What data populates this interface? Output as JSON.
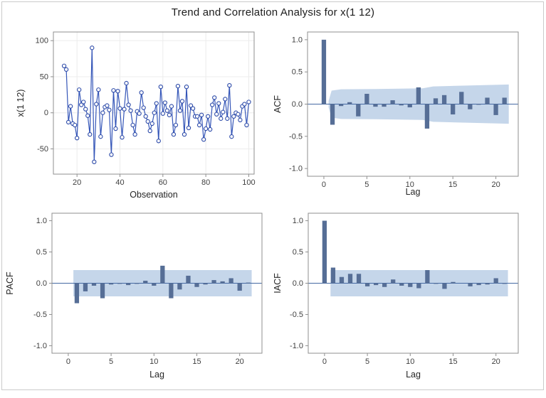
{
  "title": "Trend and Correlation Analysis for x(1 12)",
  "colors": {
    "accent_line": "#3556b8",
    "marker_edge": "#2b49a8",
    "marker_fill": "#ffffff",
    "bar": "#566e96",
    "band": "#c5d6ea",
    "zero_line": "#4569a3",
    "frame": "#8f8f8f",
    "grid": "#ececec",
    "tick_text": "#404040",
    "label_text": "#262626"
  },
  "chart_data": [
    {
      "id": "series",
      "type": "line",
      "title": "",
      "xlabel": "Observation",
      "ylabel": "x(1 12)",
      "xlim": [
        9,
        102.5
      ],
      "ylim": [
        -85,
        112
      ],
      "xticks": [
        20,
        40,
        60,
        80,
        100
      ],
      "xticklabels": [
        "20",
        "40",
        "60",
        "80",
        "100"
      ],
      "yticks": [
        100,
        50,
        0,
        -50
      ],
      "yticklabels": [
        "100",
        "50",
        "0",
        "-50"
      ],
      "grid": true,
      "x": [
        14,
        15,
        16,
        17,
        18,
        19,
        20,
        21,
        22,
        23,
        24,
        25,
        26,
        27,
        28,
        29,
        30,
        31,
        32,
        33,
        34,
        35,
        36,
        37,
        38,
        39,
        40,
        41,
        42,
        43,
        44,
        45,
        46,
        47,
        48,
        49,
        50,
        51,
        52,
        53,
        54,
        55,
        56,
        57,
        58,
        59,
        60,
        61,
        62,
        63,
        64,
        65,
        66,
        67,
        68,
        69,
        70,
        71,
        72,
        73,
        74,
        75,
        76,
        77,
        78,
        79,
        80,
        81,
        82,
        83,
        84,
        85,
        86,
        87,
        88,
        89,
        90,
        91,
        92,
        93,
        94,
        95,
        96,
        97,
        98,
        99,
        100
      ],
      "values": [
        65,
        60,
        -13,
        9,
        -15,
        -17,
        -35,
        32,
        11,
        15,
        5,
        -4,
        -30,
        90,
        -68,
        12,
        32,
        -33,
        0,
        8,
        10,
        4,
        -58,
        31,
        -22,
        30,
        6,
        -34,
        5,
        41,
        11,
        3,
        -17,
        -30,
        2,
        -1,
        28,
        7,
        -5,
        -12,
        -25,
        -15,
        0,
        13,
        -39,
        36,
        -1,
        14,
        3,
        -3,
        9,
        -30,
        -17,
        37,
        3,
        16,
        -30,
        36,
        -21,
        10,
        6,
        -5,
        -5,
        -17,
        -3,
        -37,
        -22,
        -5,
        -23,
        11,
        21,
        -2,
        13,
        -8,
        1,
        19,
        -8,
        38,
        -33,
        -5,
        0,
        -2,
        -10,
        9,
        12,
        -17,
        15
      ]
    },
    {
      "id": "acf",
      "type": "bar",
      "xlabel": "Lag",
      "ylabel": "ACF",
      "xlim": [
        -1.9,
        22.6
      ],
      "ylim": [
        -1.12,
        1.12
      ],
      "xticks": [
        0,
        5,
        10,
        15,
        20
      ],
      "xticklabels": [
        "0",
        "5",
        "10",
        "15",
        "20"
      ],
      "yticks": [
        1.0,
        0.5,
        0.0,
        -0.5,
        -1.0
      ],
      "yticklabels": [
        "1.0",
        "0.5",
        "0.0",
        "-0.5",
        "-1.0"
      ],
      "grid": false,
      "lags": [
        0,
        1,
        2,
        3,
        4,
        5,
        6,
        7,
        8,
        9,
        10,
        11,
        12,
        13,
        14,
        15,
        16,
        17,
        18,
        19,
        20,
        21
      ],
      "values": [
        1.0,
        -0.32,
        -0.03,
        0.03,
        -0.19,
        0.16,
        -0.04,
        -0.04,
        0.06,
        -0.02,
        -0.05,
        0.26,
        -0.38,
        0.09,
        0.14,
        -0.16,
        0.19,
        -0.08,
        -0.01,
        0.1,
        -0.17,
        0.1
      ],
      "band": {
        "x": [
          0.55,
          0.9,
          2,
          6,
          11.5,
          12.7,
          17,
          21.5
        ],
        "upper": [
          0.05,
          0.21,
          0.23,
          0.235,
          0.245,
          0.275,
          0.29,
          0.305
        ]
      }
    },
    {
      "id": "pacf",
      "type": "bar",
      "xlabel": "Lag",
      "ylabel": "PACF",
      "xlim": [
        -1.9,
        22.6
      ],
      "ylim": [
        -1.12,
        1.12
      ],
      "xticks": [
        0,
        5,
        10,
        15,
        20
      ],
      "xticklabels": [
        "0",
        "5",
        "10",
        "15",
        "20"
      ],
      "yticks": [
        1.0,
        0.5,
        0.0,
        -0.5,
        -1.0
      ],
      "yticklabels": [
        "1.0",
        "0.5",
        "0.0",
        "-0.5",
        "-1.0"
      ],
      "grid": false,
      "lags": [
        1,
        2,
        3,
        4,
        5,
        6,
        7,
        8,
        9,
        10,
        11,
        12,
        13,
        14,
        15,
        16,
        17,
        18,
        19,
        20,
        21
      ],
      "values": [
        -0.32,
        -0.13,
        -0.04,
        -0.24,
        -0.02,
        -0.01,
        -0.03,
        -0.01,
        0.04,
        -0.04,
        0.28,
        -0.24,
        -0.1,
        0.12,
        -0.06,
        -0.02,
        0.05,
        0.03,
        0.08,
        -0.12,
        0.01
      ],
      "band": {
        "x": [
          0.6,
          21.4
        ],
        "upper": [
          0.21,
          0.21
        ]
      }
    },
    {
      "id": "iacf",
      "type": "bar",
      "xlabel": "Lag",
      "ylabel": "IACF",
      "xlim": [
        -1.9,
        22.6
      ],
      "ylim": [
        -1.12,
        1.12
      ],
      "xticks": [
        0,
        5,
        10,
        15,
        20
      ],
      "xticklabels": [
        "0",
        "5",
        "10",
        "15",
        "20"
      ],
      "yticks": [
        1.0,
        0.5,
        0.0,
        -0.5,
        -1.0
      ],
      "yticklabels": [
        "1.0",
        "0.5",
        "0.0",
        "-0.5",
        "-1.0"
      ],
      "grid": false,
      "lags": [
        0,
        1,
        2,
        3,
        4,
        5,
        6,
        7,
        8,
        9,
        10,
        11,
        12,
        13,
        14,
        15,
        16,
        17,
        18,
        19,
        20,
        21
      ],
      "values": [
        1.0,
        0.25,
        0.1,
        0.15,
        0.15,
        -0.05,
        -0.03,
        -0.06,
        0.06,
        -0.04,
        -0.06,
        -0.08,
        0.21,
        -0.01,
        -0.09,
        0.02,
        0.0,
        -0.05,
        -0.03,
        -0.02,
        0.08,
        -0.01
      ],
      "band": {
        "x": [
          0.7,
          21.4
        ],
        "upper": [
          0.21,
          0.21
        ]
      }
    }
  ]
}
